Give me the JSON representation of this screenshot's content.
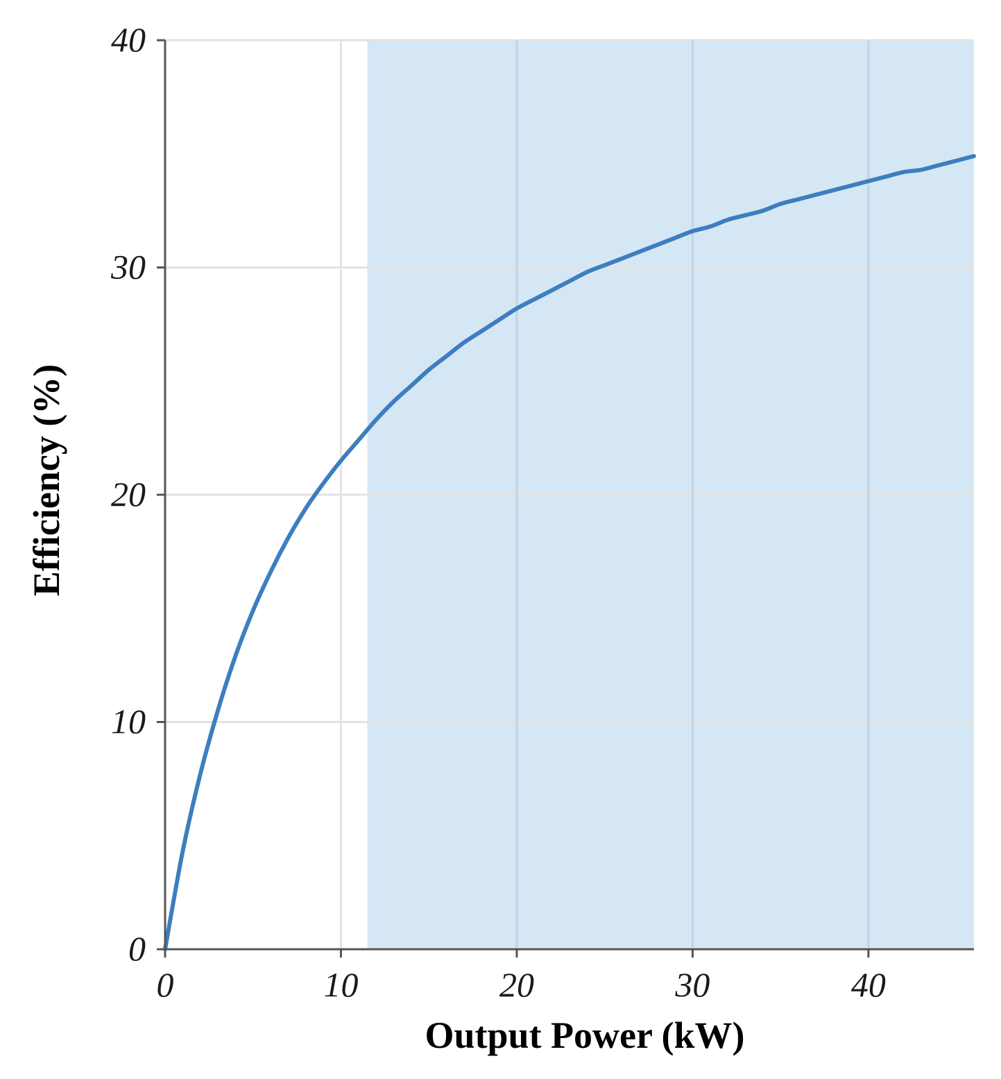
{
  "chart_data": {
    "type": "line",
    "title": "",
    "xlabel": "Output Power (kW)",
    "ylabel": "Efficiency (%)",
    "xlim": [
      0,
      46
    ],
    "ylim": [
      0,
      40
    ],
    "x_ticks": [
      "0",
      "10",
      "20",
      "30",
      "40"
    ],
    "y_ticks": [
      "0",
      "10",
      "20",
      "30",
      "40"
    ],
    "grid": true,
    "shaded_region": {
      "x_start": 11.5,
      "x_end": 46
    },
    "series": [
      {
        "x": [
          0,
          1,
          2,
          3,
          4,
          5,
          6,
          7,
          8,
          9,
          10,
          11,
          12,
          13,
          14,
          15,
          16,
          17,
          18,
          19,
          20,
          21,
          22,
          23,
          24,
          25,
          26,
          27,
          28,
          29,
          30,
          31,
          32,
          33,
          34,
          35,
          36,
          37,
          38,
          39,
          40,
          41,
          42,
          43,
          44,
          45,
          46
        ],
        "y": [
          0,
          4.3,
          7.7,
          10.5,
          12.9,
          14.9,
          16.6,
          18.1,
          19.4,
          20.5,
          21.5,
          22.4,
          23.3,
          24.1,
          24.8,
          25.5,
          26.1,
          26.7,
          27.2,
          27.7,
          28.2,
          28.6,
          29.0,
          29.4,
          29.8,
          30.1,
          30.4,
          30.7,
          31.0,
          31.3,
          31.6,
          31.8,
          32.1,
          32.3,
          32.5,
          32.8,
          33.0,
          33.2,
          33.4,
          33.6,
          33.8,
          34.0,
          34.2,
          34.3,
          34.5,
          34.7,
          34.9
        ]
      }
    ],
    "colors": {
      "line": "#3d7ebf",
      "shade": "#d5e7f5",
      "grid": "#e3e3e3",
      "axis": "#555555"
    }
  }
}
